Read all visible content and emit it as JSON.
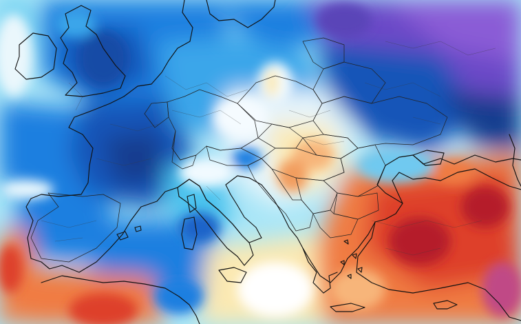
{
  "map": {
    "type": "temperature-anomaly-heatmap",
    "region": "Europe",
    "palette": {
      "white": "#ffffff",
      "cyan_light": "#a9e6f7",
      "cyan": "#4cc3ee",
      "blue": "#1f7fe0",
      "blue_dark": "#1655b8",
      "navy": "#123c8f",
      "purple": "#6a49c7",
      "violet": "#8a5cd6",
      "yellow_light": "#fbe9b2",
      "orange_light": "#f7b57a",
      "orange": "#f07c43",
      "red": "#de3f2b",
      "red_dark": "#b51f2a",
      "magenta": "#c04a86"
    }
  }
}
